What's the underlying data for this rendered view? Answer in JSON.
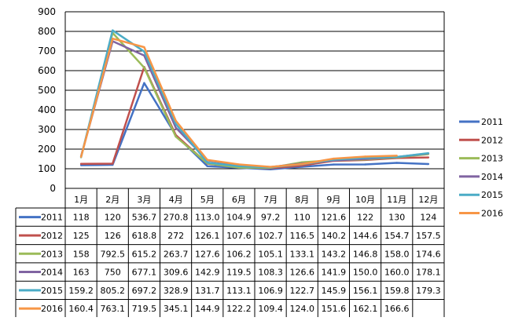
{
  "chart_data": {
    "type": "line",
    "title": "",
    "xlabel": "",
    "ylabel": "",
    "ylim": [
      0,
      900
    ],
    "yticks": [
      0,
      100,
      200,
      300,
      400,
      500,
      600,
      700,
      800,
      900
    ],
    "grid": true,
    "legend_position": "right",
    "categories": [
      "1月",
      "2月",
      "3月",
      "4月",
      "5月",
      "6月",
      "7月",
      "8月",
      "9月",
      "10月",
      "11月",
      "12月"
    ],
    "series": [
      {
        "name": "2011",
        "color": "#4472C4",
        "values": [
          118,
          120,
          536.7,
          270.8,
          113.0,
          104.9,
          97.2,
          110,
          121.6,
          122,
          130,
          124
        ],
        "labels": [
          "118",
          "120",
          "536.7",
          "270.8",
          "113.0",
          "104.9",
          "97.2",
          "110",
          "121.6",
          "122",
          "130",
          "124"
        ]
      },
      {
        "name": "2012",
        "color": "#C0504D",
        "values": [
          125,
          126,
          618.8,
          272,
          126.1,
          107.6,
          102.7,
          116.5,
          140.2,
          144.6,
          154.7,
          157.5
        ],
        "labels": [
          "125",
          "126",
          "618.8",
          "272",
          "126.1",
          "107.6",
          "102.7",
          "116.5",
          "140.2",
          "144.6",
          "154.7",
          "157.5"
        ]
      },
      {
        "name": "2013",
        "color": "#9BBB59",
        "values": [
          158,
          792.5,
          615.2,
          263.7,
          127.6,
          106.2,
          105.1,
          133.1,
          143.2,
          146.8,
          158.0,
          174.6
        ],
        "labels": [
          "158",
          "792.5",
          "615.2",
          "263.7",
          "127.6",
          "106.2",
          "105.1",
          "133.1",
          "143.2",
          "146.8",
          "158.0",
          "174.6"
        ]
      },
      {
        "name": "2014",
        "color": "#8064A2",
        "values": [
          163,
          750,
          677.1,
          309.6,
          142.9,
          119.5,
          108.3,
          126.6,
          141.9,
          150.0,
          160.0,
          178.1
        ],
        "labels": [
          "163",
          "750",
          "677.1",
          "309.6",
          "142.9",
          "119.5",
          "108.3",
          "126.6",
          "141.9",
          "150.0",
          "160.0",
          "178.1"
        ]
      },
      {
        "name": "2015",
        "color": "#4BACC6",
        "values": [
          159.2,
          805.2,
          697.2,
          328.9,
          131.7,
          113.1,
          106.9,
          122.7,
          145.9,
          156.1,
          159.8,
          179.3
        ],
        "labels": [
          "159.2",
          "805.2",
          "697.2",
          "328.9",
          "131.7",
          "113.1",
          "106.9",
          "122.7",
          "145.9",
          "156.1",
          "159.8",
          "179.3"
        ]
      },
      {
        "name": "2016",
        "color": "#F79646",
        "values": [
          160.4,
          763.1,
          719.5,
          345.1,
          144.9,
          122.2,
          109.4,
          124.0,
          151.6,
          162.1,
          166.6,
          null
        ],
        "labels": [
          "160.4",
          "763.1",
          "719.5",
          "345.1",
          "144.9",
          "122.2",
          "109.4",
          "124.0",
          "151.6",
          "162.1",
          "166.6",
          ""
        ]
      }
    ]
  }
}
